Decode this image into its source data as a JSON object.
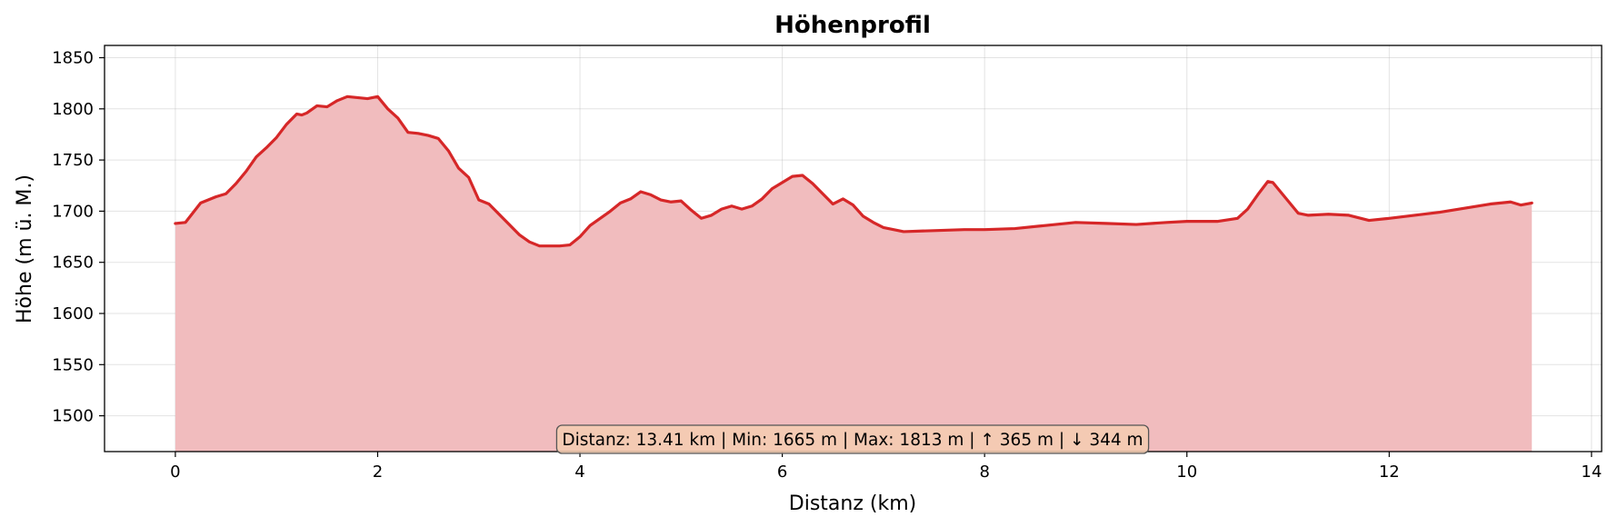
{
  "chart_data": {
    "type": "area",
    "title": "Höhenprofil",
    "xlabel": "Distanz (km)",
    "ylabel": "Höhe (m ü. M.)",
    "xlim": [
      -0.7,
      14.1
    ],
    "ylim": [
      1465,
      1862
    ],
    "xticks": [
      0,
      2,
      4,
      6,
      8,
      10,
      12,
      14
    ],
    "yticks": [
      1500,
      1550,
      1600,
      1650,
      1700,
      1750,
      1800,
      1850
    ],
    "grid": true,
    "line_color": "#d62728",
    "fill_color": "#f1bcbe",
    "stats_box_color": "#f5cdb1",
    "stats_text": "Distanz: 13.41 km | Min: 1665 m | Max: 1813 m | ↑ 365 m | ↓ 344 m",
    "series": [
      {
        "x": [
          0,
          0.1,
          0.25,
          0.4,
          0.5,
          0.6,
          0.7,
          0.8,
          0.9,
          1.0,
          1.1,
          1.2,
          1.25,
          1.3,
          1.4,
          1.5,
          1.6,
          1.7,
          1.8,
          1.9,
          2.0,
          2.1,
          2.2,
          2.3,
          2.4,
          2.5,
          2.6,
          2.7,
          2.8,
          2.9,
          3.0,
          3.1,
          3.2,
          3.3,
          3.4,
          3.5,
          3.6,
          3.7,
          3.8,
          3.9,
          4.0,
          4.1,
          4.2,
          4.3,
          4.4,
          4.5,
          4.6,
          4.7,
          4.8,
          4.9,
          5.0,
          5.1,
          5.2,
          5.3,
          5.4,
          5.5,
          5.6,
          5.7,
          5.8,
          5.9,
          6.0,
          6.1,
          6.2,
          6.3,
          6.4,
          6.5,
          6.6,
          6.7,
          6.8,
          6.9,
          7.0,
          7.2,
          7.5,
          7.8,
          8.0,
          8.3,
          8.6,
          8.9,
          9.2,
          9.5,
          9.8,
          10.0,
          10.3,
          10.5,
          10.6,
          10.7,
          10.8,
          10.85,
          10.9,
          11.0,
          11.1,
          11.2,
          11.4,
          11.6,
          11.8,
          12.0,
          12.5,
          13.0,
          13.2,
          13.3,
          13.41
        ],
        "values": [
          1688,
          1689,
          1708,
          1714,
          1717,
          1727,
          1739,
          1753,
          1762,
          1772,
          1785,
          1795,
          1794,
          1796,
          1803,
          1802,
          1808,
          1812,
          1811,
          1810,
          1812,
          1800,
          1791,
          1777,
          1776,
          1774,
          1771,
          1759,
          1742,
          1733,
          1711,
          1707,
          1697,
          1687,
          1677,
          1670,
          1666,
          1666,
          1666,
          1667,
          1675,
          1686,
          1693,
          1700,
          1708,
          1712,
          1719,
          1716,
          1711,
          1709,
          1710,
          1701,
          1693,
          1696,
          1702,
          1705,
          1702,
          1705,
          1712,
          1722,
          1728,
          1734,
          1735,
          1727,
          1717,
          1707,
          1712,
          1706,
          1695,
          1689,
          1684,
          1680,
          1681,
          1682,
          1682,
          1683,
          1686,
          1689,
          1688,
          1687,
          1689,
          1690,
          1690,
          1693,
          1702,
          1716,
          1729,
          1728,
          1722,
          1710,
          1698,
          1696,
          1697,
          1696,
          1691,
          1693,
          1699,
          1707,
          1709,
          1706,
          1708
        ]
      }
    ]
  }
}
